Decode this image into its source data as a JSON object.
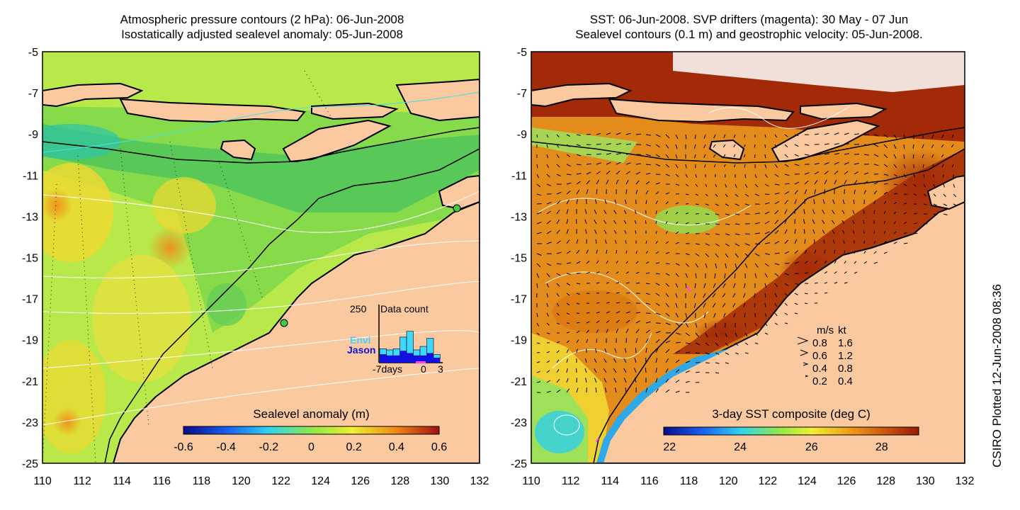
{
  "left_panel": {
    "title_line1": "Atmospheric pressure contours (2 hPa): 06-Jun-2008",
    "title_line2": "Isostatically adjusted sealevel anomaly: 05-Jun-2008",
    "colorbar_title": "Sealevel anomaly (m)",
    "colorbar_ticks": [
      "-0.6",
      "-0.4",
      "-0.2",
      "0",
      "0.2",
      "0.4",
      "0.6"
    ],
    "inset": {
      "title": "Data count",
      "ymax_label": "250",
      "xticks": [
        "-7days",
        "0",
        "3"
      ],
      "legend": [
        {
          "label": "Envi",
          "color": "#3fd6ff"
        },
        {
          "label": "Jason",
          "color": "#1010e0"
        }
      ],
      "envi_counts": [
        60,
        55,
        60,
        110,
        135,
        55,
        70,
        105,
        35
      ],
      "jason_counts": [
        35,
        30,
        30,
        50,
        40,
        30,
        30,
        40,
        20
      ]
    }
  },
  "right_panel": {
    "title_line1": "SST: 06-Jun-2008. SVP drifters (magenta): 30 May - 07 Jun",
    "title_line2": "Sealevel contours (0.1 m) and geostrophic velocity: 05-Jun-2008.",
    "colorbar_title": "3-day SST composite (deg C)",
    "colorbar_ticks": [
      "22",
      "24",
      "26",
      "28"
    ],
    "velocity_legend": {
      "header_ms": "m/s",
      "header_kt": "kt",
      "rows": [
        {
          "ms": "0.8",
          "kt": "1.6"
        },
        {
          "ms": "0.6",
          "kt": "1.2"
        },
        {
          "ms": "0.4",
          "kt": "0.8"
        },
        {
          "ms": "0.2",
          "kt": "0.4"
        }
      ]
    }
  },
  "axes": {
    "lon_ticks": [
      "110",
      "112",
      "114",
      "116",
      "118",
      "120",
      "122",
      "124",
      "126",
      "128",
      "130",
      "132"
    ],
    "lat_ticks": [
      "-5",
      "-7",
      "-9",
      "-11",
      "-13",
      "-15",
      "-17",
      "-19",
      "-21",
      "-23",
      "-25"
    ]
  },
  "credit": "CSIRO Plotted 12-Jun-2008 08:36",
  "colors": {
    "land": "#fac9a0",
    "ssl_map_base": "#b8e84a",
    "sst_map_base": "#e38c1c",
    "sst_warm": "#a32a08"
  }
}
